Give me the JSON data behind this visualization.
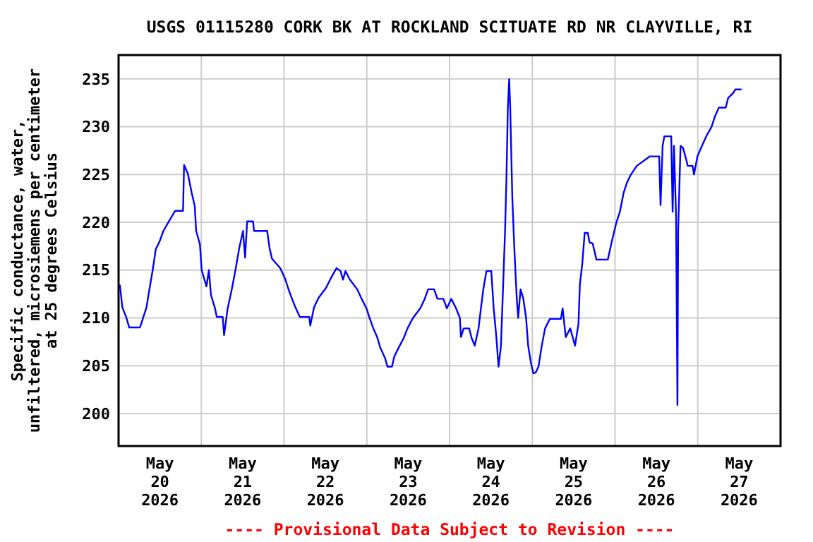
{
  "chart_data": {
    "type": "line",
    "title": "USGS 01115280 CORK BK AT ROCKLAND SCITUATE RD NR CLAYVILLE, RI",
    "ylabel": "Specific conductance, water,\nunfiltered, microsiemens per centimeter\nat 25 degrees Celsius",
    "annotations": [
      "---- Provisional Data Subject to Revision ----"
    ],
    "xlim": [
      "2026-05-20T00:00",
      "2026-05-28T00:00"
    ],
    "xticks": [
      {
        "value": "2026-05-20T00:00",
        "label": null
      },
      {
        "value": "2026-05-20T12:00",
        "label": "May\n20\n2026"
      },
      {
        "value": "2026-05-21T00:00",
        "label": null
      },
      {
        "value": "2026-05-21T12:00",
        "label": "May\n21\n2026"
      },
      {
        "value": "2026-05-22T00:00",
        "label": null
      },
      {
        "value": "2026-05-22T12:00",
        "label": "May\n22\n2026"
      },
      {
        "value": "2026-05-23T00:00",
        "label": null
      },
      {
        "value": "2026-05-23T12:00",
        "label": "May\n23\n2026"
      },
      {
        "value": "2026-05-24T00:00",
        "label": null
      },
      {
        "value": "2026-05-24T12:00",
        "label": "May\n24\n2026"
      },
      {
        "value": "2026-05-25T00:00",
        "label": null
      },
      {
        "value": "2026-05-25T12:00",
        "label": "May\n25\n2026"
      },
      {
        "value": "2026-05-26T00:00",
        "label": null
      },
      {
        "value": "2026-05-26T12:00",
        "label": "May\n26\n2026"
      },
      {
        "value": "2026-05-27T00:00",
        "label": null
      },
      {
        "value": "2026-05-27T12:00",
        "label": "May\n27\n2026"
      },
      {
        "value": "2026-05-28T00:00",
        "label": null
      }
    ],
    "ylim": [
      196.6,
      237.5
    ],
    "yticks": [
      200,
      205,
      210,
      215,
      220,
      225,
      230,
      235
    ],
    "grid": true,
    "marker": "none",
    "line_style": "solid",
    "series": [
      {
        "color": "#0000ff",
        "x": [
          "2026-05-20T00:24",
          "2026-05-20T01:06",
          "2026-05-20T02:12",
          "2026-05-20T03:06",
          "2026-05-20T06:12",
          "2026-05-20T07:12",
          "2026-05-20T08:06",
          "2026-05-20T09:00",
          "2026-05-20T09:54",
          "2026-05-20T10:48",
          "2026-05-20T11:54",
          "2026-05-20T13:00",
          "2026-05-20T14:36",
          "2026-05-20T16:24",
          "2026-05-20T18:42",
          "2026-05-20T19:00",
          "2026-05-20T20:06",
          "2026-05-20T21:12",
          "2026-05-20T22:06",
          "2026-05-20T22:30",
          "2026-05-20T23:36",
          "2026-05-21T00:06",
          "2026-05-21T01:30",
          "2026-05-21T02:12",
          "2026-05-21T02:48",
          "2026-05-21T03:54",
          "2026-05-21T04:30",
          "2026-05-21T06:12",
          "2026-05-21T06:36",
          "2026-05-21T07:36",
          "2026-05-21T08:54",
          "2026-05-21T09:54",
          "2026-05-21T11:00",
          "2026-05-21T12:06",
          "2026-05-21T12:42",
          "2026-05-21T13:18",
          "2026-05-21T15:00",
          "2026-05-21T15:18",
          "2026-05-21T19:06",
          "2026-05-21T19:48",
          "2026-05-21T20:30",
          "2026-05-21T22:54",
          "2026-05-22T00:18",
          "2026-05-22T01:12",
          "2026-05-22T02:12",
          "2026-05-22T03:18",
          "2026-05-22T04:36",
          "2026-05-22T07:18",
          "2026-05-22T07:36",
          "2026-05-22T08:42",
          "2026-05-22T10:00",
          "2026-05-22T12:06",
          "2026-05-22T13:30",
          "2026-05-22T15:12",
          "2026-05-22T16:24",
          "2026-05-22T17:06",
          "2026-05-22T17:48",
          "2026-05-22T19:06",
          "2026-05-22T21:12",
          "2026-05-22T22:30",
          "2026-05-22T23:54",
          "2026-05-23T00:48",
          "2026-05-23T01:54",
          "2026-05-23T03:00",
          "2026-05-23T03:54",
          "2026-05-23T05:18",
          "2026-05-23T06:00",
          "2026-05-23T07:18",
          "2026-05-23T08:00",
          "2026-05-23T09:24",
          "2026-05-23T10:42",
          "2026-05-23T11:48",
          "2026-05-23T13:24",
          "2026-05-23T15:30",
          "2026-05-23T16:48",
          "2026-05-23T17:48",
          "2026-05-23T19:30",
          "2026-05-23T20:30",
          "2026-05-23T22:12",
          "2026-05-23T23:12",
          "2026-05-24T00:30",
          "2026-05-24T01:54",
          "2026-05-24T03:00",
          "2026-05-24T03:18",
          "2026-05-24T04:06",
          "2026-05-24T05:42",
          "2026-05-24T06:24",
          "2026-05-24T07:18",
          "2026-05-24T08:24",
          "2026-05-24T09:06",
          "2026-05-24T09:48",
          "2026-05-24T10:42",
          "2026-05-24T12:06",
          "2026-05-24T12:48",
          "2026-05-24T13:36",
          "2026-05-24T14:12",
          "2026-05-24T14:54",
          "2026-05-24T15:30",
          "2026-05-24T16:06",
          "2026-05-24T16:30",
          "2026-05-24T16:54",
          "2026-05-24T17:18",
          "2026-05-24T17:36",
          "2026-05-24T18:12",
          "2026-05-24T18:48",
          "2026-05-24T19:30",
          "2026-05-24T19:54",
          "2026-05-24T20:36",
          "2026-05-24T21:24",
          "2026-05-24T22:12",
          "2026-05-24T22:48",
          "2026-05-24T23:36",
          "2026-05-25T00:18",
          "2026-05-25T01:00",
          "2026-05-25T01:48",
          "2026-05-25T02:42",
          "2026-05-25T03:42",
          "2026-05-25T05:06",
          "2026-05-25T08:18",
          "2026-05-25T08:48",
          "2026-05-25T09:42",
          "2026-05-25T11:00",
          "2026-05-25T12:24",
          "2026-05-25T13:24",
          "2026-05-25T13:48",
          "2026-05-25T14:30",
          "2026-05-25T15:12",
          "2026-05-25T16:06",
          "2026-05-25T16:36",
          "2026-05-25T17:30",
          "2026-05-25T18:36",
          "2026-05-25T21:54",
          "2026-05-25T23:00",
          "2026-05-26T00:24",
          "2026-05-26T01:24",
          "2026-05-26T02:30",
          "2026-05-26T03:24",
          "2026-05-26T04:36",
          "2026-05-26T06:18",
          "2026-05-26T10:06",
          "2026-05-26T12:48",
          "2026-05-26T13:12",
          "2026-05-26T13:48",
          "2026-05-26T14:18",
          "2026-05-26T16:18",
          "2026-05-26T16:42",
          "2026-05-26T17:06",
          "2026-05-26T17:42",
          "2026-05-26T18:06",
          "2026-05-26T18:18",
          "2026-05-26T19:00",
          "2026-05-26T19:42",
          "2026-05-26T20:24",
          "2026-05-26T21:06",
          "2026-05-26T22:30",
          "2026-05-26T22:54",
          "2026-05-26T23:54",
          "2026-05-27T01:12",
          "2026-05-27T02:36",
          "2026-05-27T04:00",
          "2026-05-27T05:00",
          "2026-05-27T06:06",
          "2026-05-27T08:06",
          "2026-05-27T08:48",
          "2026-05-27T10:12",
          "2026-05-27T10:54",
          "2026-05-27T12:30"
        ],
        "values": [
          213.4,
          211.1,
          210.1,
          209.0,
          209.0,
          210.1,
          211.1,
          213.1,
          215.0,
          217.2,
          218.0,
          219.1,
          220.1,
          221.2,
          221.2,
          226.0,
          225.1,
          223.1,
          221.7,
          219.1,
          217.7,
          215.0,
          213.3,
          215.0,
          212.4,
          211.1,
          210.1,
          210.1,
          208.2,
          210.9,
          213.1,
          215.0,
          217.3,
          219.1,
          216.3,
          220.1,
          220.1,
          219.1,
          219.1,
          217.3,
          216.2,
          215.2,
          214.1,
          213.1,
          212.1,
          211.1,
          210.1,
          210.1,
          209.2,
          211.1,
          212.1,
          213.1,
          214.1,
          215.2,
          214.9,
          214.0,
          214.9,
          214.0,
          213.0,
          212.0,
          211.0,
          210.0,
          208.9,
          208.0,
          206.9,
          205.8,
          204.9,
          204.9,
          206.0,
          207.0,
          207.9,
          208.9,
          210.0,
          211.0,
          212.0,
          213.0,
          213.0,
          212.0,
          212.0,
          211.0,
          212.0,
          211.0,
          210.0,
          208.0,
          208.9,
          208.9,
          207.9,
          207.1,
          208.9,
          211.0,
          213.0,
          214.9,
          214.9,
          211.0,
          207.9,
          204.9,
          207.0,
          213.0,
          219.1,
          224.6,
          231.9,
          235.0,
          232.0,
          222.6,
          217.2,
          212.0,
          210.0,
          213.0,
          212.0,
          210.0,
          207.1,
          205.3,
          204.2,
          204.3,
          204.9,
          207.0,
          208.9,
          209.9,
          209.9,
          211.0,
          208.0,
          208.9,
          207.1,
          209.4,
          213.5,
          215.7,
          218.9,
          218.9,
          217.9,
          217.8,
          216.1,
          216.1,
          217.9,
          220.0,
          221.1,
          223.1,
          224.1,
          225.0,
          225.9,
          226.9,
          226.9,
          221.8,
          228.0,
          229.0,
          229.0,
          221.1,
          228.0,
          220.6,
          200.9,
          219.1,
          228.0,
          227.8,
          226.9,
          225.9,
          225.9,
          225.0,
          226.9,
          228.0,
          229.1,
          230.0,
          231.1,
          232.0,
          232.0,
          233.0,
          233.5,
          233.9,
          233.9
        ]
      }
    ]
  }
}
